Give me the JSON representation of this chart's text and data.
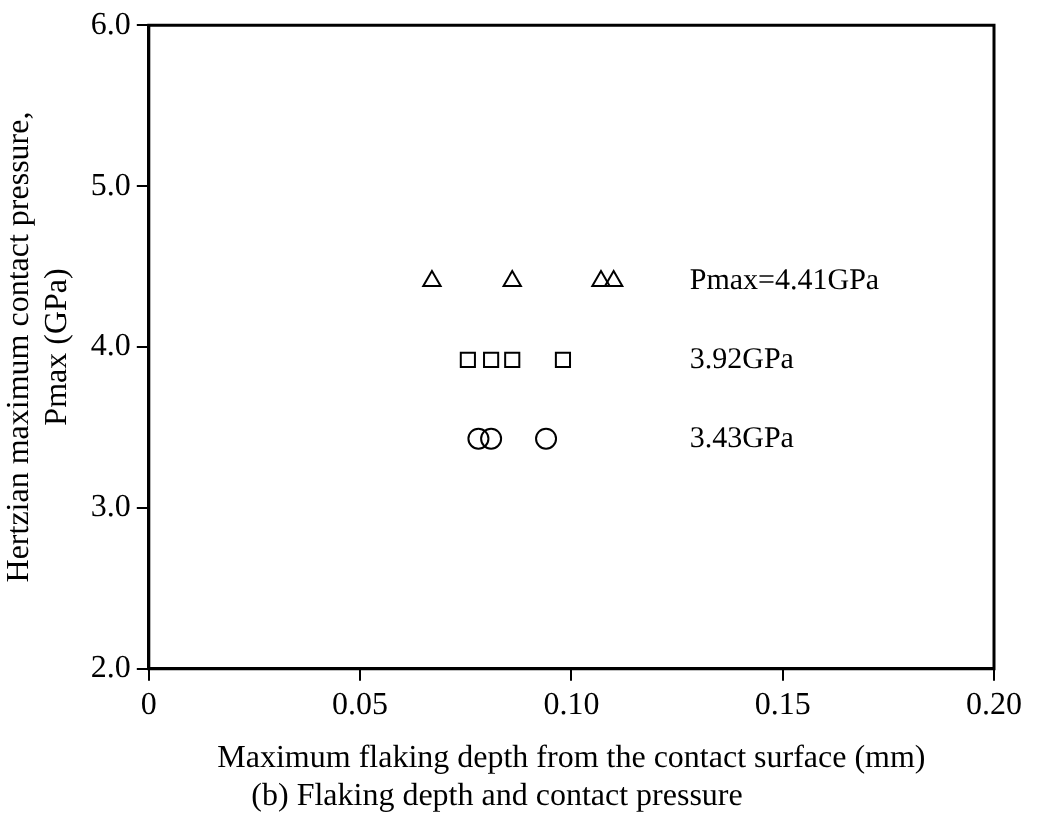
{
  "chart_data": {
    "type": "scatter",
    "title": "(b) Flaking depth and contact pressure",
    "xlabel": "Maximum flaking depth from the contact surface (mm)",
    "ylabel": "Hertzian maximum contact pressure,\nPmax (GPa)",
    "series": [
      {
        "name": "Pmax=4.41GPa",
        "color": "#000000",
        "marker": "triangle",
        "x": [
          0.067,
          0.086,
          0.107,
          0.11
        ],
        "values": [
          4.41,
          4.41,
          4.41,
          4.41
        ]
      },
      {
        "name": "3.92GPa",
        "color": "#000000",
        "marker": "square",
        "x": [
          0.0755,
          0.081,
          0.086,
          0.098
        ],
        "values": [
          3.92,
          3.92,
          3.92,
          3.92
        ]
      },
      {
        "name": "3.43GPa",
        "color": "#000000",
        "marker": "circle",
        "x": [
          0.078,
          0.081,
          0.094
        ],
        "values": [
          3.43,
          3.43,
          3.43
        ]
      }
    ],
    "xlim": [
      0,
      0.2
    ],
    "xticks": [
      0,
      0.05,
      {
        "value": 0.1,
        "label": "0.10"
      },
      0.15,
      {
        "value": 0.2,
        "label": "0.20"
      }
    ],
    "ylim": [
      2,
      6
    ],
    "yticks": [
      {
        "value": 2,
        "label": "2.0"
      },
      {
        "value": 3,
        "label": "3.0"
      },
      {
        "value": 4,
        "label": "4.0"
      },
      {
        "value": 5,
        "label": "5.0"
      },
      {
        "value": 6,
        "label": "6.0"
      }
    ],
    "grid": false,
    "legend": false
  }
}
